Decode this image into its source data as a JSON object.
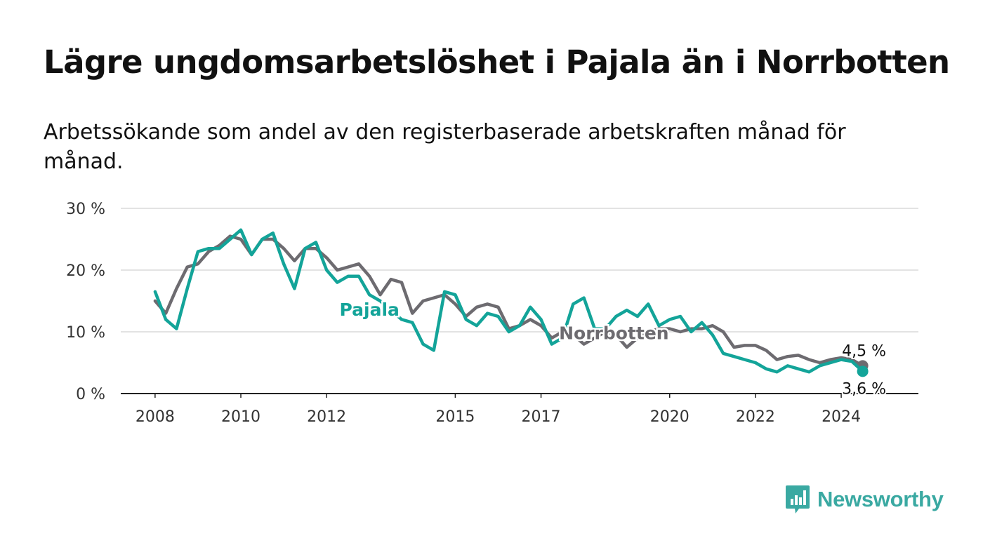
{
  "title": "Lägre ungdomsarbetslöshet i Pajala än i Norrbotten",
  "subtitle": "Arbetssökande som andel av den registerbaserade arbetskraften månad för månad.",
  "brand": {
    "name": "Newsworthy",
    "icon": "newsworthy-logo-icon",
    "color": "#3aa9a2"
  },
  "chart_data": {
    "type": "line",
    "title": "Lägre ungdomsarbetslöshet i Pajala än i Norrbotten",
    "xlabel": "",
    "ylabel": "",
    "ylim": [
      0,
      30
    ],
    "yticks": [
      0,
      10,
      20,
      30
    ],
    "ytick_labels": [
      "0 %",
      "10 %",
      "20 %",
      "30 %"
    ],
    "xlim": [
      2007.2,
      2025.8
    ],
    "xticks": [
      2008,
      2010,
      2012,
      2015,
      2017,
      2020,
      2022,
      2024
    ],
    "xtick_labels": [
      "2008",
      "2010",
      "2012",
      "2015",
      "2017",
      "2020",
      "2022",
      "2024"
    ],
    "grid": true,
    "legend": "none (inline series labels)",
    "series": [
      {
        "name": "Norrbotten",
        "color": "#6d6b70",
        "end_label": "4,5 %",
        "x": [
          2008.0,
          2008.25,
          2008.5,
          2008.75,
          2009.0,
          2009.25,
          2009.5,
          2009.75,
          2010.0,
          2010.25,
          2010.5,
          2010.75,
          2011.0,
          2011.25,
          2011.5,
          2011.75,
          2012.0,
          2012.25,
          2012.5,
          2012.75,
          2013.0,
          2013.25,
          2013.5,
          2013.75,
          2014.0,
          2014.25,
          2014.5,
          2014.75,
          2015.0,
          2015.25,
          2015.5,
          2015.75,
          2016.0,
          2016.25,
          2016.5,
          2016.75,
          2017.0,
          2017.25,
          2017.5,
          2017.75,
          2018.0,
          2018.25,
          2018.5,
          2018.75,
          2019.0,
          2019.25,
          2019.5,
          2019.75,
          2020.0,
          2020.25,
          2020.5,
          2020.75,
          2021.0,
          2021.25,
          2021.5,
          2021.75,
          2022.0,
          2022.25,
          2022.5,
          2022.75,
          2023.0,
          2023.25,
          2023.5,
          2023.75,
          2024.0,
          2024.25,
          2024.5
        ],
        "y": [
          15.0,
          13.0,
          17.0,
          20.5,
          21.0,
          23.0,
          24.0,
          25.5,
          25.0,
          22.5,
          25.0,
          25.0,
          23.5,
          21.5,
          23.5,
          23.5,
          22.0,
          20.0,
          20.5,
          21.0,
          19.0,
          16.0,
          18.5,
          18.0,
          13.0,
          15.0,
          15.5,
          16.0,
          14.5,
          12.5,
          14.0,
          14.5,
          14.0,
          10.5,
          11.0,
          12.0,
          11.0,
          9.0,
          10.0,
          9.5,
          8.0,
          9.0,
          10.0,
          9.5,
          7.5,
          9.0,
          10.0,
          10.5,
          10.5,
          10.0,
          10.5,
          10.5,
          11.0,
          10.0,
          7.5,
          7.8,
          7.8,
          7.0,
          5.5,
          6.0,
          6.2,
          5.5,
          5.0,
          5.5,
          5.8,
          5.5,
          4.5
        ]
      },
      {
        "name": "Pajala",
        "color": "#13a499",
        "end_label": "3,6 %",
        "x": [
          2008.0,
          2008.25,
          2008.5,
          2008.75,
          2009.0,
          2009.25,
          2009.5,
          2009.75,
          2010.0,
          2010.25,
          2010.5,
          2010.75,
          2011.0,
          2011.25,
          2011.5,
          2011.75,
          2012.0,
          2012.25,
          2012.5,
          2012.75,
          2013.0,
          2013.25,
          2013.5,
          2013.75,
          2014.0,
          2014.25,
          2014.5,
          2014.75,
          2015.0,
          2015.25,
          2015.5,
          2015.75,
          2016.0,
          2016.25,
          2016.5,
          2016.75,
          2017.0,
          2017.25,
          2017.5,
          2017.75,
          2018.0,
          2018.25,
          2018.5,
          2018.75,
          2019.0,
          2019.25,
          2019.5,
          2019.75,
          2020.0,
          2020.25,
          2020.5,
          2020.75,
          2021.0,
          2021.25,
          2021.5,
          2021.75,
          2022.0,
          2022.25,
          2022.5,
          2022.75,
          2023.0,
          2023.25,
          2023.5,
          2023.75,
          2024.0,
          2024.25,
          2024.5
        ],
        "y": [
          16.5,
          12.0,
          10.5,
          17.0,
          23.0,
          23.5,
          23.5,
          25.0,
          26.5,
          22.5,
          25.0,
          26.0,
          21.0,
          17.0,
          23.5,
          24.5,
          20.0,
          18.0,
          19.0,
          19.0,
          16.0,
          15.0,
          13.5,
          12.0,
          11.5,
          8.0,
          7.0,
          16.5,
          16.0,
          12.0,
          11.0,
          13.0,
          12.5,
          10.0,
          11.0,
          14.0,
          12.0,
          8.0,
          9.0,
          14.5,
          15.5,
          10.5,
          10.5,
          12.5,
          13.5,
          12.5,
          14.5,
          11.0,
          12.0,
          12.5,
          10.0,
          11.5,
          9.5,
          6.5,
          6.0,
          5.5,
          5.0,
          4.0,
          3.5,
          4.5,
          4.0,
          3.5,
          4.5,
          5.0,
          5.5,
          5.2,
          3.6
        ]
      }
    ]
  }
}
